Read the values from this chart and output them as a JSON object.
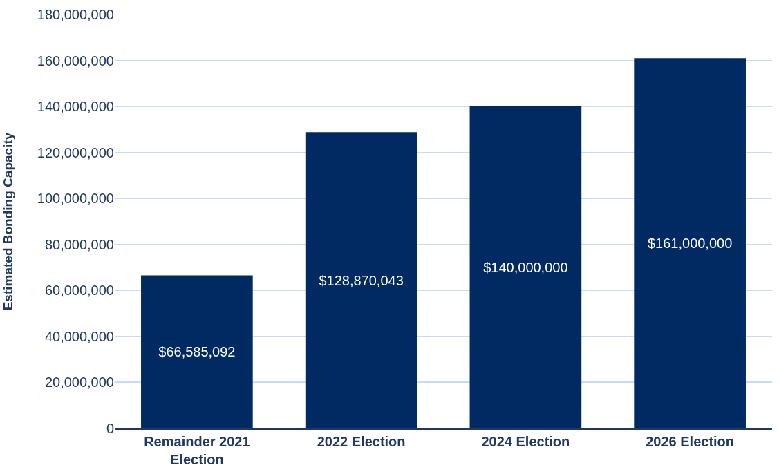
{
  "chart_data": {
    "type": "bar",
    "ylabel": "Estimated Bonding Capacity",
    "categories": [
      "Remainder 2021 Election",
      "2022 Election",
      "2024 Election",
      "2026 Election"
    ],
    "values": [
      66585092,
      128870043,
      140000000,
      161000000
    ],
    "value_labels": [
      "$66,585,092",
      "$128,870,043",
      "$140,000,000",
      "$161,000,000"
    ],
    "color": "#012a62",
    "ylim": [
      0,
      180000000
    ],
    "yticks": [
      0,
      {
        "value": 20000000,
        "label": "20,000,000"
      },
      {
        "value": 40000000,
        "label": "40,000,000"
      },
      {
        "value": 60000000,
        "label": "60,000,000"
      },
      {
        "value": 80000000,
        "label": "80,000,000"
      },
      {
        "value": 100000000,
        "label": "100,000,000"
      },
      {
        "value": 120000000,
        "label": "120,000,000"
      },
      {
        "value": 140000000,
        "label": "140,000,000"
      },
      {
        "value": 160000000,
        "label": "160,000,000"
      },
      {
        "value": 180000000,
        "label": "180,000,000"
      }
    ],
    "grid": "y",
    "legend": false
  }
}
